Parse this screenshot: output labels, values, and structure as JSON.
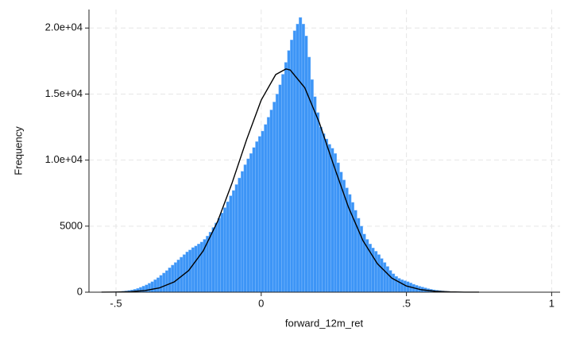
{
  "chart_data": {
    "type": "histogram",
    "x_label": "forward_12m_ret",
    "y_label": "Frequency",
    "color": "#3d95f6",
    "edge_color": "#8cc2ff",
    "grid": true,
    "xlim": [
      -0.593,
      1.029
    ],
    "ylim": [
      0,
      21400
    ],
    "xticks": [
      {
        "value": -0.5,
        "label": "-.5"
      },
      0,
      {
        "value": 0.5,
        "label": ".5"
      },
      1
    ],
    "yticks": [
      0,
      5000,
      {
        "value": 10000,
        "label": "1.0e+04"
      },
      {
        "value": 15000,
        "label": "1.5e+04"
      },
      {
        "value": 20000,
        "label": "2.0e+04"
      }
    ],
    "bins": [
      -0.57,
      -0.56,
      -0.55,
      -0.54,
      -0.53,
      -0.52,
      -0.51,
      -0.5,
      -0.49,
      -0.48,
      -0.47,
      -0.46,
      -0.45,
      -0.44,
      -0.43,
      -0.42,
      -0.41,
      -0.4,
      -0.39,
      -0.38,
      -0.37,
      -0.36,
      -0.35,
      -0.34,
      -0.33,
      -0.32,
      -0.31,
      -0.3,
      -0.29,
      -0.28,
      -0.27,
      -0.26,
      -0.25,
      -0.24,
      -0.23,
      -0.22,
      -0.21,
      -0.2,
      -0.19,
      -0.18,
      -0.17,
      -0.16,
      -0.15,
      -0.14,
      -0.13,
      -0.12,
      -0.11,
      -0.1,
      -0.09,
      -0.08,
      -0.07,
      -0.06,
      -0.05,
      -0.04,
      -0.03,
      -0.02,
      -0.01,
      0,
      0.01,
      0.02,
      0.03,
      0.04,
      0.05,
      0.06,
      0.07,
      0.08,
      0.09,
      0.1,
      0.11,
      0.12,
      0.13,
      0.14,
      0.15,
      0.16,
      0.17,
      0.18,
      0.19,
      0.2,
      0.21,
      0.22,
      0.23,
      0.24,
      0.25,
      0.26,
      0.27,
      0.28,
      0.29,
      0.3,
      0.31,
      0.32,
      0.33,
      0.34,
      0.35,
      0.36,
      0.37,
      0.38,
      0.39,
      0.4,
      0.41,
      0.42,
      0.43,
      0.44,
      0.45,
      0.46,
      0.47,
      0.48,
      0.49,
      0.5,
      0.51,
      0.52,
      0.53,
      0.54,
      0.55,
      0.56,
      0.57,
      0.58,
      0.59,
      0.6,
      0.61,
      0.62,
      0.63,
      0.64,
      0.65,
      0.66,
      0.67,
      0.68,
      0.69,
      0.7,
      0.71,
      0.72,
      0.73,
      0.74,
      0.75
    ],
    "values": [
      2,
      3,
      5,
      8,
      12,
      18,
      25,
      35,
      50,
      70,
      95,
      130,
      170,
      220,
      290,
      370,
      460,
      560,
      680,
      800,
      950,
      1100,
      1280,
      1450,
      1640,
      1850,
      2050,
      2250,
      2450,
      2650,
      2850,
      3050,
      3200,
      3380,
      3500,
      3650,
      3800,
      4000,
      4250,
      4550,
      4900,
      5250,
      5600,
      6000,
      6400,
      6850,
      7300,
      7700,
      8150,
      8650,
      9150,
      9650,
      10100,
      10500,
      10950,
      11400,
      11800,
      12200,
      12700,
      13250,
      13800,
      14400,
      15000,
      15700,
      16500,
      17400,
      18300,
      19100,
      19800,
      20300,
      20800,
      20300,
      19400,
      17800,
      16100,
      14800,
      13600,
      12500,
      12000,
      11600,
      11200,
      10900,
      10500,
      9800,
      9100,
      8500,
      7900,
      7400,
      6800,
      6200,
      5600,
      5000,
      4400,
      4000,
      3650,
      3350,
      3100,
      2850,
      2550,
      2250,
      1950,
      1650,
      1400,
      1200,
      1050,
      950,
      870,
      800,
      700,
      600,
      520,
      450,
      390,
      330,
      270,
      220,
      180,
      150,
      120,
      95,
      75,
      60,
      48,
      38,
      30,
      23,
      18,
      13,
      10,
      7,
      5,
      3
    ],
    "overlay": {
      "type": "line",
      "color": "#000000",
      "x": [
        -0.55,
        -0.5,
        -0.45,
        -0.4,
        -0.35,
        -0.3,
        -0.25,
        -0.2,
        -0.15,
        -0.1,
        -0.05,
        0,
        0.05,
        0.085,
        0.1,
        0.15,
        0.2,
        0.25,
        0.3,
        0.35,
        0.4,
        0.45,
        0.5,
        0.55,
        0.6,
        0.65,
        0.7,
        0.75
      ],
      "values": [
        4,
        14,
        44,
        126,
        329,
        773,
        1636,
        3115,
        5358,
        8291,
        11568,
        14543,
        16477,
        16900,
        16820,
        15480,
        12836,
        9585,
        6458,
        3917,
        2153,
        1057,
        469,
        188,
        68,
        22,
        6,
        2
      ]
    }
  }
}
